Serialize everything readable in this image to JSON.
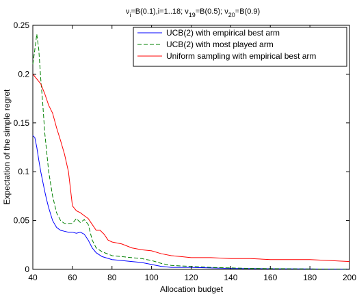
{
  "chart_data": {
    "type": "line",
    "title": {
      "main": "ν",
      "parts": [
        {
          "t": "ν",
          "s": "n"
        },
        {
          "t": "i",
          "s": "sub"
        },
        {
          "t": "=B(0.1),i=1..18; ν",
          "s": "n"
        },
        {
          "t": "19",
          "s": "sub"
        },
        {
          "t": "=B(0.5); ν",
          "s": "n"
        },
        {
          "t": "20",
          "s": "sub"
        },
        {
          "t": "=B(0.9)",
          "s": "n"
        }
      ]
    },
    "xlabel": "Allocation budget",
    "ylabel": "Expectation of the simple regret",
    "xlim": [
      40,
      200
    ],
    "ylim": [
      0,
      0.25
    ],
    "xticks": [
      "40",
      "60",
      "80",
      "100",
      "120",
      "140",
      "160",
      "180",
      "200"
    ],
    "yticks": [
      "0",
      "0.05",
      "0.1",
      "0.15",
      "0.2",
      "0.25"
    ],
    "grid": false,
    "legend_position": "top-right",
    "series": [
      {
        "name": "UCB(2) with empirical best arm",
        "color": "#0000ff",
        "dash": "solid",
        "x": [
          40,
          41,
          42,
          43,
          44,
          45,
          46,
          47,
          48,
          50,
          52,
          54,
          56,
          58,
          60,
          62,
          64,
          66,
          68,
          70,
          72,
          75,
          80,
          85,
          90,
          95,
          100,
          105,
          110,
          120,
          130,
          140,
          150,
          160,
          170,
          180,
          190,
          200
        ],
        "y": [
          0.137,
          0.135,
          0.125,
          0.112,
          0.1,
          0.09,
          0.08,
          0.071,
          0.063,
          0.05,
          0.043,
          0.04,
          0.039,
          0.038,
          0.038,
          0.037,
          0.038,
          0.036,
          0.03,
          0.022,
          0.017,
          0.013,
          0.01,
          0.009,
          0.008,
          0.007,
          0.005,
          0.003,
          0.002,
          0.002,
          0.0015,
          0.001,
          0.0008,
          0.0006,
          0.0005,
          0.0004,
          0.0003,
          0.0002
        ]
      },
      {
        "name": "UCB(2) with most played arm",
        "color": "#008000",
        "dash": "dashed",
        "x": [
          40,
          41,
          42,
          43,
          44,
          45,
          46,
          47,
          48,
          50,
          52,
          54,
          56,
          58,
          60,
          62,
          64,
          66,
          68,
          70,
          72,
          75,
          80,
          85,
          90,
          95,
          100,
          105,
          110,
          120,
          130,
          140,
          150,
          160,
          170,
          180,
          190,
          200
        ],
        "y": [
          0.21,
          0.225,
          0.241,
          0.225,
          0.195,
          0.17,
          0.14,
          0.12,
          0.1,
          0.075,
          0.058,
          0.05,
          0.047,
          0.047,
          0.047,
          0.052,
          0.048,
          0.051,
          0.046,
          0.03,
          0.022,
          0.018,
          0.014,
          0.013,
          0.012,
          0.011,
          0.009,
          0.006,
          0.004,
          0.003,
          0.002,
          0.0015,
          0.001,
          0.0008,
          0.0006,
          0.0004,
          0.0003,
          0.0002
        ]
      },
      {
        "name": "Uniform sampling with empirical best arm",
        "color": "#ff0000",
        "dash": "solid",
        "x": [
          40,
          42,
          44,
          46,
          48,
          50,
          52,
          54,
          56,
          58,
          60,
          62,
          64,
          66,
          68,
          70,
          72,
          74,
          76,
          78,
          80,
          85,
          90,
          95,
          100,
          105,
          110,
          115,
          120,
          130,
          140,
          150,
          160,
          170,
          180,
          190,
          200
        ],
        "y": [
          0.2,
          0.195,
          0.19,
          0.18,
          0.168,
          0.16,
          0.145,
          0.132,
          0.118,
          0.1,
          0.065,
          0.06,
          0.058,
          0.055,
          0.052,
          0.046,
          0.04,
          0.04,
          0.036,
          0.03,
          0.028,
          0.026,
          0.022,
          0.02,
          0.019,
          0.016,
          0.014,
          0.013,
          0.012,
          0.012,
          0.011,
          0.011,
          0.01,
          0.01,
          0.01,
          0.009,
          0.008
        ]
      }
    ]
  }
}
